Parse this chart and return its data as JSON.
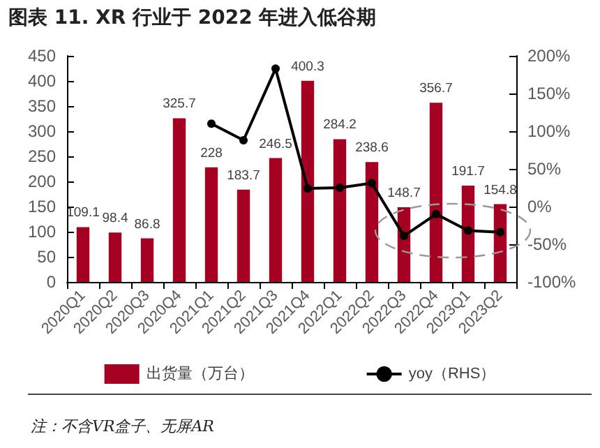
{
  "chart_data": {
    "type": "bar",
    "title": "图表 11. XR 行业于 2022 年进入低谷期",
    "categories": [
      "2020Q1",
      "2020Q2",
      "2020Q3",
      "2020Q4",
      "2021Q1",
      "2021Q2",
      "2021Q3",
      "2021Q4",
      "2022Q1",
      "2022Q2",
      "2022Q3",
      "2022Q4",
      "2023Q1",
      "2023Q2"
    ],
    "series": [
      {
        "name": "出货量（万台）",
        "color": "#a50021",
        "data_labels": true,
        "values": [
          109.1,
          98.4,
          86.8,
          325.7,
          228,
          183.7,
          246.5,
          400.3,
          284.2,
          238.6,
          148.7,
          356.7,
          191.7,
          154.8
        ]
      },
      {
        "name": "yoy（RHS）",
        "type": "line",
        "axis": "y2",
        "color": "#000000",
        "marker": "circle",
        "values": [
          null,
          null,
          null,
          null,
          110,
          88,
          183,
          24,
          25,
          31,
          -39,
          -10,
          -32,
          -34
        ]
      }
    ],
    "ylim": [
      0,
      450
    ],
    "yticks": [
      0,
      50,
      100,
      150,
      200,
      250,
      300,
      350,
      400,
      450
    ],
    "y2lim": [
      -100,
      200
    ],
    "y2ticks": [
      {
        "value": -100,
        "label": "-100%"
      },
      {
        "value": -50,
        "label": "-50%"
      },
      {
        "value": 0,
        "label": "0%"
      },
      {
        "value": 50,
        "label": "50%"
      },
      {
        "value": 100,
        "label": "100%"
      },
      {
        "value": 150,
        "label": "150%"
      },
      {
        "value": 200,
        "label": "200%"
      }
    ],
    "grid": false,
    "legend": "bottom",
    "annotations": [
      "注：不含VR盒子、无屏AR"
    ]
  }
}
